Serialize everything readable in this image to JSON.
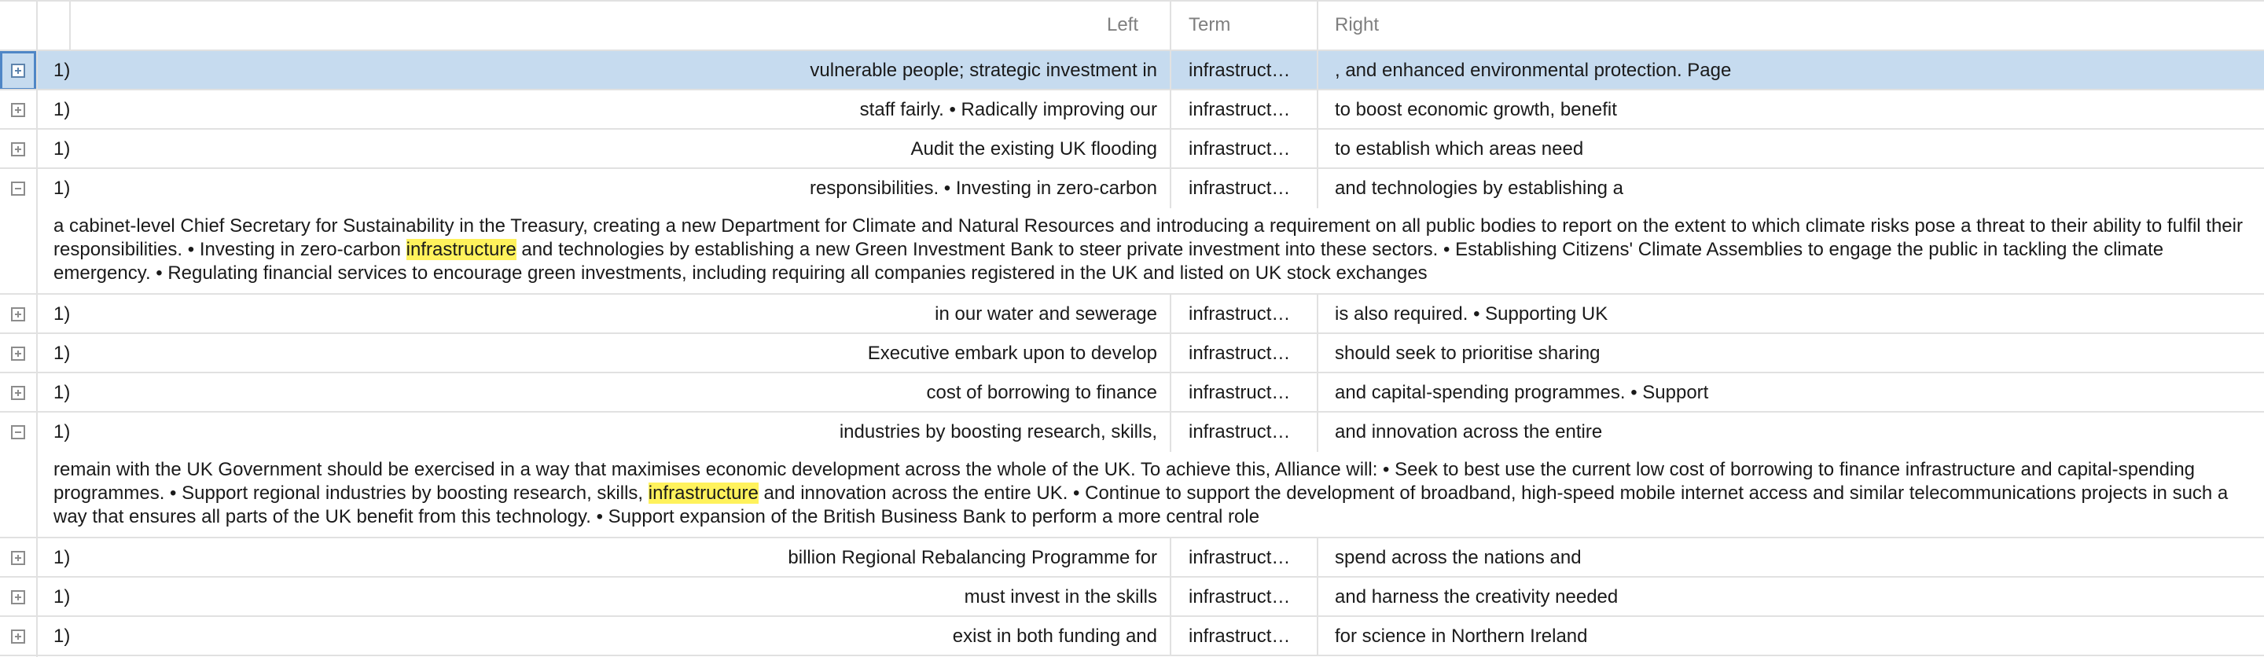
{
  "headers": {
    "left": "Left",
    "term": "Term",
    "right": "Right"
  },
  "rows": [
    {
      "num": "1)",
      "left": "vulnerable people; strategic investment in",
      "term": "infrastructure",
      "right": ", and enhanced environmental protection. Page"
    },
    {
      "num": "1)",
      "left": "staff fairly. • Radically improving our",
      "term": "infrastructure",
      "right": "to boost economic growth, benefit"
    },
    {
      "num": "1)",
      "left": "Audit the existing UK flooding",
      "term": "infrastructure",
      "right": "to establish which areas need"
    },
    {
      "num": "1)",
      "left": "responsibilities. • Investing in zero-carbon",
      "term": "infrastructure",
      "right": "and technologies by establishing a"
    },
    {
      "num": "1)",
      "left": "in our water and sewerage",
      "term": "infrastructure",
      "right": "is also required. • Supporting UK"
    },
    {
      "num": "1)",
      "left": "Executive embark upon to develop",
      "term": "infrastructure",
      "right": "should seek to prioritise sharing"
    },
    {
      "num": "1)",
      "left": "cost of borrowing to finance",
      "term": "infrastructure",
      "right": "and capital-spending programmes. • Support"
    },
    {
      "num": "1)",
      "left": "industries by boosting research, skills,",
      "term": "infrastructure",
      "right": "and innovation across the entire"
    },
    {
      "num": "1)",
      "left": "billion Regional Rebalancing Programme for",
      "term": "infrastructure",
      "right": "spend across the nations and"
    },
    {
      "num": "1)",
      "left": "must invest in the skills",
      "term": "infrastructure",
      "right": "and harness the creativity needed"
    },
    {
      "num": "1)",
      "left": "exist in both funding and",
      "term": "infrastructure",
      "right": "for science in Northern Ireland"
    }
  ],
  "details": [
    {
      "before": "a cabinet-level Chief Secretary for Sustainability in the Treasury, creating a new Department for Climate and Natural Resources and introducing a requirement on all public bodies to report on the extent to which climate risks pose a threat to their ability to fulfil their responsibilities. • Investing in zero-carbon ",
      "highlight": "infrastructure",
      "after": " and technologies by establishing a new Green Investment Bank to steer private investment into these sectors. • Establishing Citizens' Climate Assemblies to engage the public in tackling the climate emergency. • Regulating financial services to encourage green investments, including requiring all companies registered in the UK and listed on UK stock exchanges"
    },
    {
      "before": "remain with the UK Government should be exercised in a way that maximises economic development across the whole of the UK. To achieve this, Alliance will: • Seek to best use the current low cost of borrowing to finance infrastructure and capital-spending programmes. • Support regional industries by boosting research, skills, ",
      "highlight": "infrastructure",
      "after": " and innovation across the entire UK. • Continue to support the development of broadband, high-speed mobile internet access and similar telecommunications projects in such a way that ensures all parts of the UK benefit from this technology. • Support expansion of the British Business Bank to perform a more central role"
    }
  ],
  "colors": {
    "selection": "#c6dbef",
    "highlight": "#fff25c",
    "grid": "#e1e1e1",
    "header_text": "#7f7f7f"
  }
}
